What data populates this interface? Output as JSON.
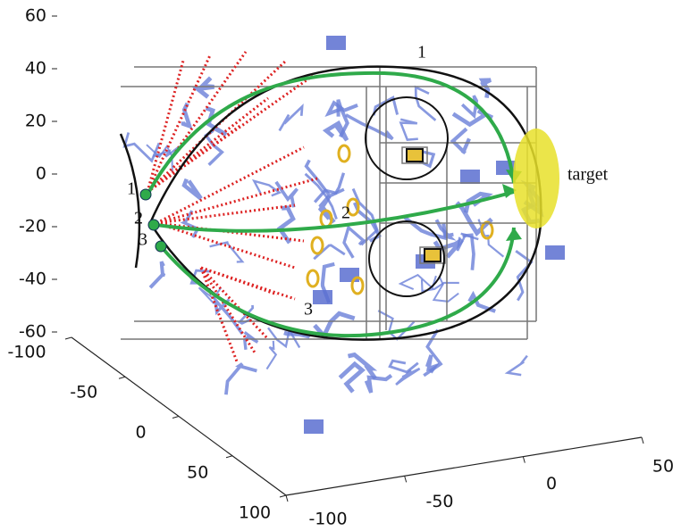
{
  "chart_data": {
    "type": "trajectory3d",
    "zlim": [
      -60,
      60
    ],
    "zticks": [
      60,
      40,
      20,
      0,
      -20,
      -40,
      -60
    ],
    "xlim": [
      -100,
      100
    ],
    "xticks": [
      -100,
      -50,
      0,
      50,
      100
    ],
    "ylim": [
      -100,
      50
    ],
    "yticks": [
      -100,
      -50,
      0,
      50
    ],
    "target_label": "target",
    "path_labels": [
      "1",
      "2",
      "3"
    ],
    "start_labels": [
      "1",
      "2",
      "3"
    ]
  }
}
